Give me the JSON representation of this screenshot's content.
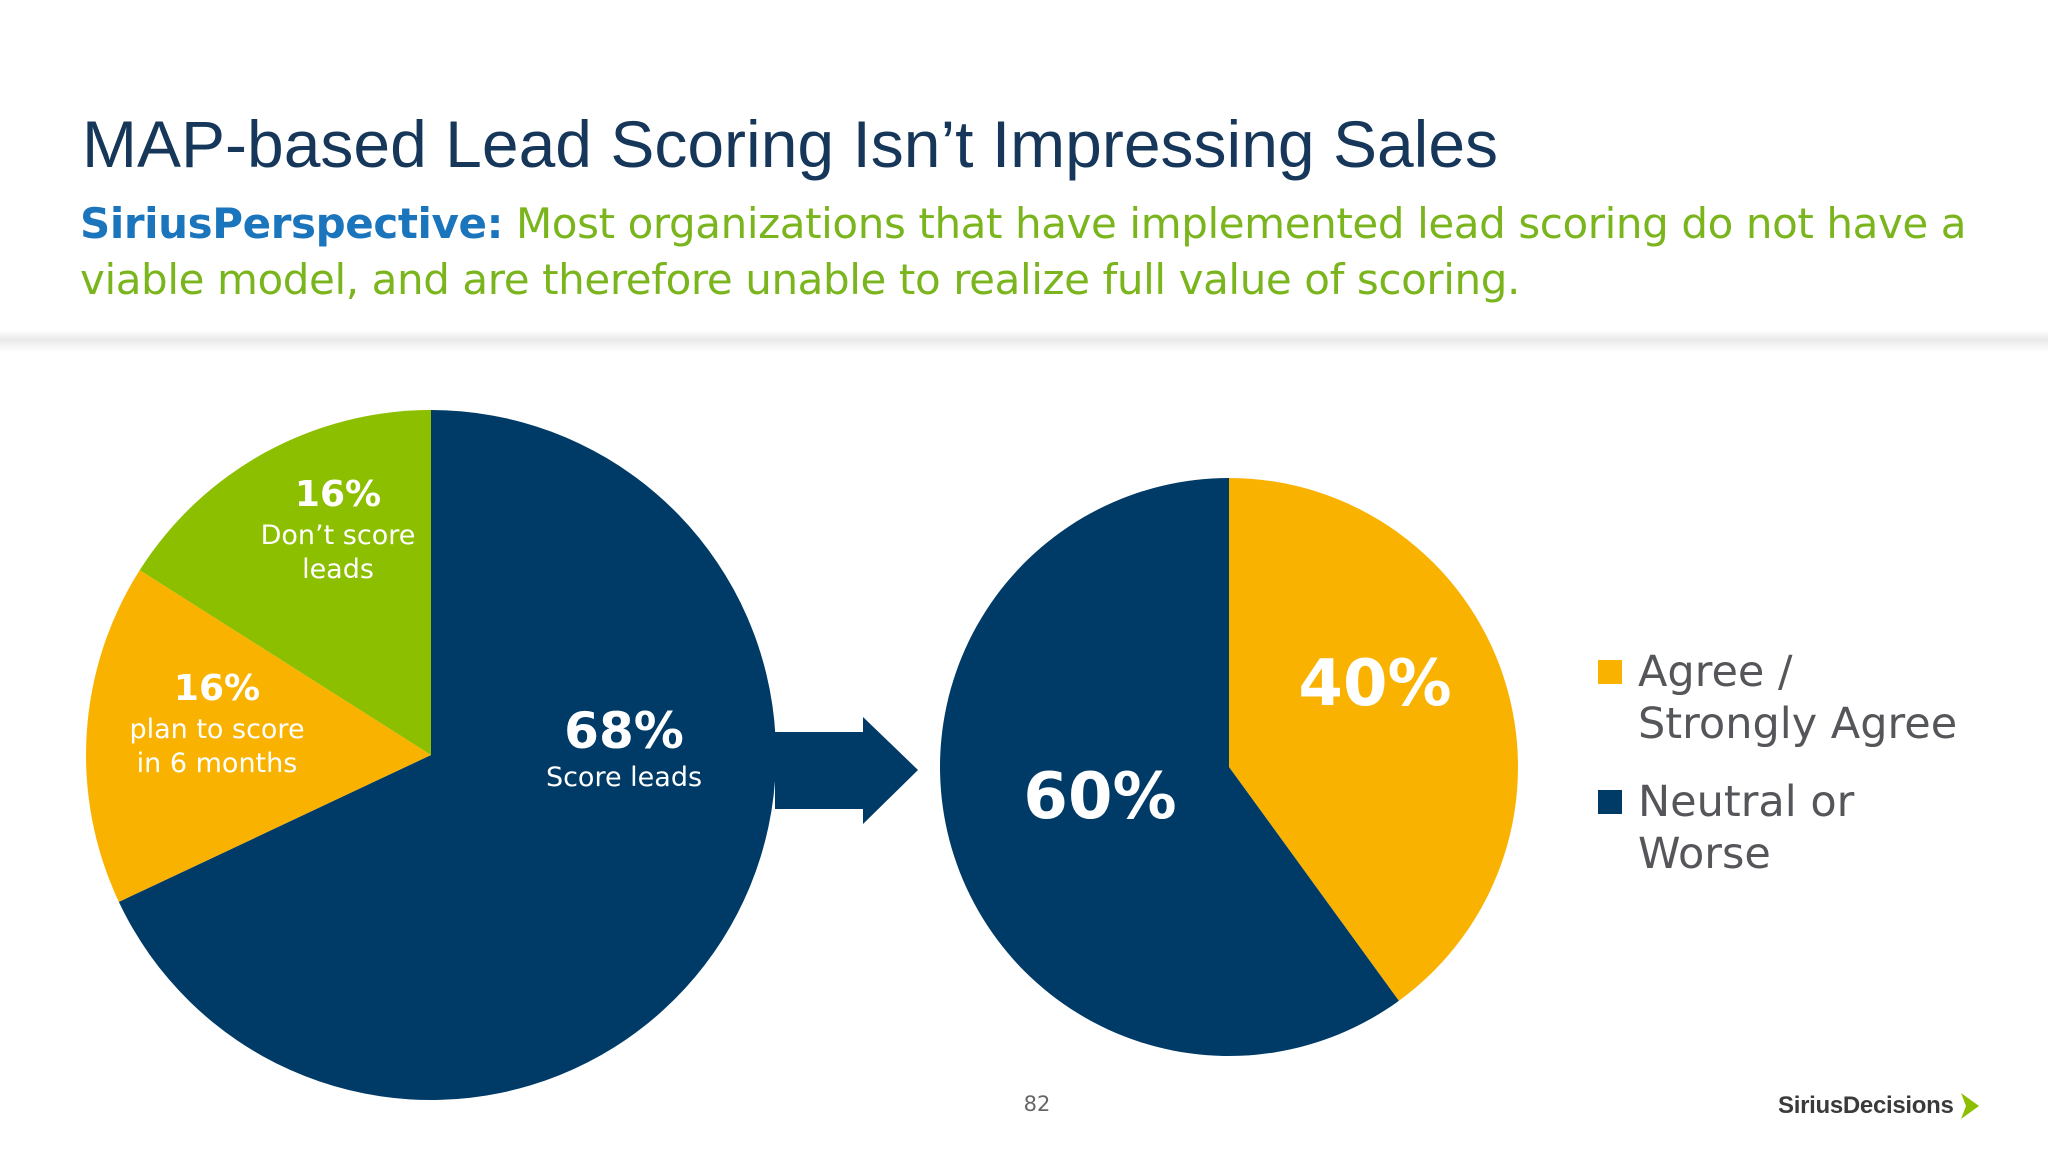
{
  "slide": {
    "title": "MAP-based Lead Scoring Isn’t Impressing Sales",
    "perspective_label": "SiriusPerspective:",
    "perspective_text": "Most organizations that have implemented lead scoring do not have a viable model, and are therefore unable to realize full value of scoring.",
    "page_number": "82",
    "logo_text": "SiriusDecisions"
  },
  "colors": {
    "navy": "#003b68",
    "gold": "#f9b200",
    "green": "#8cbf00",
    "title": "#16375a",
    "accent_blue": "#1b75bc",
    "accent_green": "#7ab51d",
    "logo_green": "#8cbf00"
  },
  "chart_data": [
    {
      "type": "pie",
      "start_angle_deg": 0,
      "direction": "clockwise",
      "slices": [
        {
          "value": 68,
          "pct_label": "68%",
          "label": "Score leads",
          "color": "#003b68"
        },
        {
          "value": 16,
          "pct_label": "16%",
          "label": "plan to score in 6 months",
          "label_lines": [
            "plan to score",
            "in 6 months"
          ],
          "color": "#f9b200"
        },
        {
          "value": 16,
          "pct_label": "16%",
          "label": "Don’t score leads",
          "label_lines": [
            "Don’t score",
            "leads"
          ],
          "color": "#8cbf00"
        }
      ]
    },
    {
      "type": "pie",
      "start_angle_deg": 0,
      "direction": "clockwise",
      "slices": [
        {
          "value": 40,
          "pct_label": "40%",
          "label": "Agree / Strongly Agree",
          "color": "#f9b200"
        },
        {
          "value": 60,
          "pct_label": "60%",
          "label": "Neutral or Worse",
          "color": "#003b68"
        }
      ],
      "legend": {
        "position": "right",
        "items": [
          {
            "label": "Agree / Strongly Agree",
            "color": "#f9b200"
          },
          {
            "label": "Neutral or Worse",
            "color": "#003b68"
          }
        ]
      }
    }
  ]
}
